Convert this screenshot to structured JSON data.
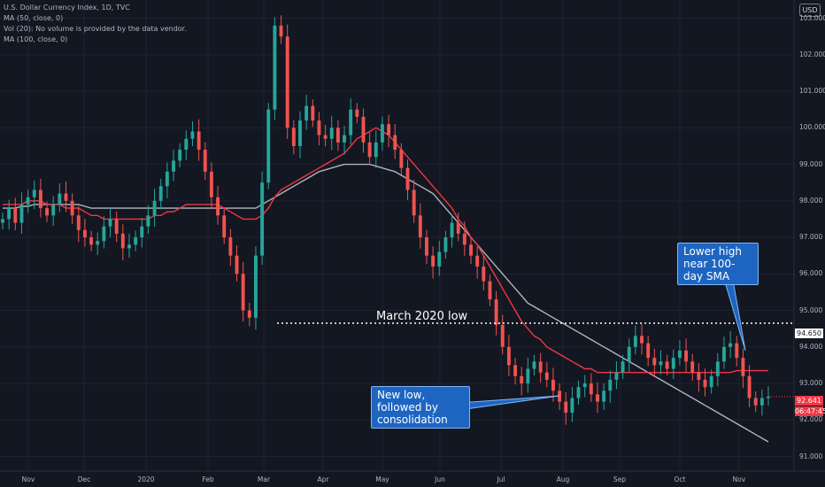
{
  "legend": {
    "title": "U.S. Dollar Currency Index, 1D, TVC",
    "ma50": "MA (50, close, 0)",
    "vol": "Vol (20): No volume is provided by the data vendor.",
    "ma100": "MA (100, close, 0)"
  },
  "currency_badge": "USD",
  "price_labels": {
    "level": "94.650",
    "last": "92.641",
    "countdown": "06:47:45"
  },
  "annotations": {
    "march_low": "March 2020 low",
    "new_low": "New low, followed by consolidation",
    "lower_high": "Lower high near 100-day SMA"
  },
  "colors": {
    "background": "#131722",
    "up": "#26a69a",
    "down": "#ef5350",
    "ma50": "#f23645",
    "ma100": "#b2b5be",
    "callout": "#1d65c1"
  },
  "chart_data": {
    "type": "candlestick",
    "title": "U.S. Dollar Currency Index, 1D, TVC",
    "ylim": [
      90.6,
      103.5
    ],
    "y_ticks": [
      "103.000",
      "102.000",
      "101.000",
      "100.000",
      "99.000",
      "98.000",
      "97.000",
      "96.000",
      "95.000",
      "94.000",
      "93.000",
      "92.000",
      "91.000"
    ],
    "x_ticks": [
      "Nov",
      "Dec",
      "2020",
      "Feb",
      "Mar",
      "Apr",
      "May",
      "Jun",
      "Jul",
      "Aug",
      "Sep",
      "Oct",
      "Nov"
    ],
    "series_close": [
      97.5,
      97.8,
      97.4,
      97.9,
      98.1,
      98.3,
      97.8,
      97.6,
      97.9,
      98.2,
      98.0,
      97.6,
      97.2,
      97.0,
      96.8,
      96.9,
      97.3,
      97.5,
      97.1,
      96.7,
      96.8,
      97.0,
      97.3,
      97.6,
      98.0,
      98.4,
      98.8,
      99.1,
      99.4,
      99.7,
      99.9,
      99.4,
      98.8,
      98.1,
      97.6,
      97.0,
      96.5,
      96.0,
      95.0,
      94.8,
      96.5,
      98.5,
      100.5,
      102.8,
      102.5,
      100.0,
      99.5,
      100.2,
      100.6,
      100.2,
      99.8,
      99.7,
      100.0,
      99.6,
      99.8,
      100.5,
      100.3,
      99.6,
      99.2,
      99.6,
      100.1,
      99.8,
      99.4,
      98.9,
      98.3,
      97.6,
      97.0,
      96.5,
      96.2,
      96.6,
      97.0,
      97.4,
      97.1,
      96.8,
      96.5,
      96.2,
      95.8,
      95.3,
      94.6,
      94.0,
      93.5,
      93.2,
      93.0,
      93.4,
      93.6,
      93.3,
      93.1,
      92.8,
      92.5,
      92.2,
      92.6,
      92.9,
      93.0,
      92.7,
      92.5,
      92.8,
      93.1,
      93.3,
      93.6,
      94.0,
      94.3,
      94.1,
      93.7,
      93.5,
      93.6,
      93.4,
      93.7,
      93.9,
      93.6,
      93.3,
      93.1,
      92.9,
      93.2,
      93.6,
      94.0,
      94.1,
      93.7,
      93.2,
      92.6,
      92.4,
      92.6,
      92.64
    ],
    "ma50_name": "MA (50, close, 0)",
    "ma100_name": "MA (100, close, 0)",
    "ma50": [
      97.9,
      97.9,
      97.9,
      97.9,
      98.0,
      98.0,
      98.0,
      97.9,
      97.9,
      97.9,
      97.8,
      97.8,
      97.8,
      97.7,
      97.6,
      97.6,
      97.5,
      97.5,
      97.5,
      97.5,
      97.5,
      97.5,
      97.5,
      97.5,
      97.6,
      97.6,
      97.7,
      97.7,
      97.8,
      97.9,
      97.9,
      97.9,
      97.9,
      97.9,
      97.9,
      97.8,
      97.7,
      97.6,
      97.5,
      97.5,
      97.5,
      97.6,
      97.8,
      98.1,
      98.3,
      98.4,
      98.5,
      98.6,
      98.7,
      98.8,
      98.9,
      99.0,
      99.1,
      99.2,
      99.3,
      99.5,
      99.7,
      99.8,
      99.9,
      100.0,
      99.9,
      99.8,
      99.6,
      99.4,
      99.2,
      99.0,
      98.8,
      98.6,
      98.4,
      98.2,
      98.0,
      97.8,
      97.5,
      97.3,
      97.0,
      96.8,
      96.5,
      96.2,
      95.9,
      95.6,
      95.3,
      95.0,
      94.7,
      94.5,
      94.3,
      94.2,
      94.0,
      93.9,
      93.8,
      93.7,
      93.6,
      93.5,
      93.4,
      93.4,
      93.3,
      93.3,
      93.3,
      93.3,
      93.3,
      93.3,
      93.3,
      93.3,
      93.3,
      93.3,
      93.3,
      93.3,
      93.3,
      93.3,
      93.3,
      93.3,
      93.3,
      93.3,
      93.3,
      93.3,
      93.3,
      93.3,
      93.35,
      93.35,
      93.35,
      93.35,
      93.35,
      93.35
    ],
    "ma100": [
      97.8,
      97.8,
      97.8,
      97.85,
      97.85,
      97.9,
      97.9,
      97.9,
      97.9,
      97.9,
      97.9,
      97.9,
      97.9,
      97.85,
      97.8,
      97.8,
      97.8,
      97.8,
      97.8,
      97.8,
      97.8,
      97.8,
      97.8,
      97.8,
      97.8,
      97.8,
      97.8,
      97.8,
      97.8,
      97.8,
      97.8,
      97.8,
      97.8,
      97.8,
      97.8,
      97.8,
      97.8,
      97.8,
      97.8,
      97.8,
      97.8,
      97.9,
      98.0,
      98.1,
      98.2,
      98.3,
      98.4,
      98.5,
      98.6,
      98.7,
      98.8,
      98.85,
      98.9,
      98.95,
      99.0,
      99.0,
      99.0,
      99.0,
      99.0,
      98.95,
      98.9,
      98.85,
      98.8,
      98.7,
      98.6,
      98.5,
      98.4,
      98.3,
      98.2,
      98.0,
      97.8,
      97.6,
      97.4,
      97.2,
      97.0,
      96.8,
      96.6,
      96.4,
      96.2,
      96.0,
      95.8,
      95.6,
      95.4,
      95.2,
      95.1,
      95.0,
      94.9,
      94.8,
      94.7,
      94.6,
      94.5,
      94.4,
      94.3,
      94.2,
      94.1,
      94.0,
      93.9,
      93.8,
      93.7,
      93.6,
      93.5,
      93.4,
      93.3,
      93.2,
      93.1,
      93.0,
      92.9,
      92.8,
      92.7,
      92.6,
      92.5,
      92.4,
      92.3,
      92.2,
      92.1,
      92.0,
      91.9,
      91.8,
      91.7,
      91.6,
      91.5,
      91.4
    ],
    "horizontal_level": 94.65,
    "last_price": 92.641
  }
}
